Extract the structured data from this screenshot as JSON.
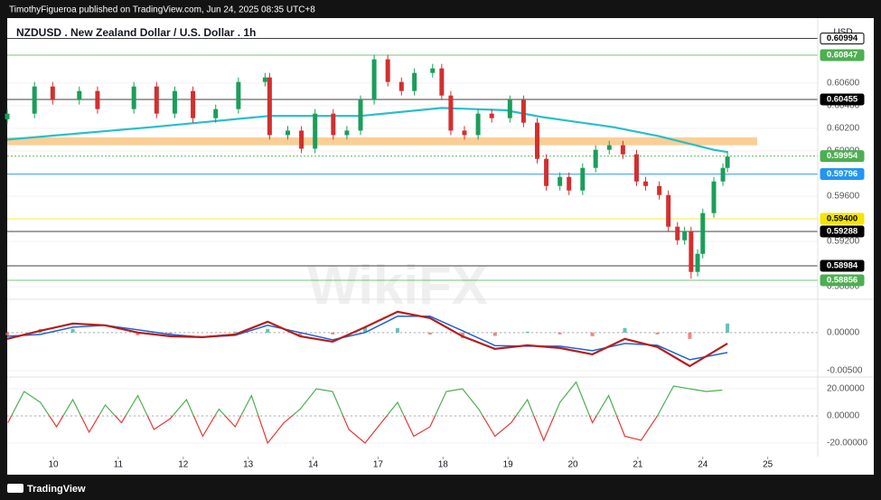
{
  "header": {
    "author_line": "TimothyFigueroa published on TradingView.com, Jun 24, 2025 08:35 UTC+8"
  },
  "footer": {
    "brand": "TradingView"
  },
  "watermark": "WikiFX",
  "chart_data": [
    {
      "type": "candlestick",
      "title": "NZDUSD . New Zealand Dollar / U.S. Dollar . 1h",
      "currency": "USD",
      "x": [
        -0.71,
        -0.29,
        -0.01,
        0.4,
        0.68,
        1.24,
        1.59,
        1.87,
        2.15,
        2.5,
        2.85,
        3.26,
        3.33,
        3.61,
        3.82,
        4.03,
        4.31,
        4.52,
        4.73,
        4.94,
        5.15,
        5.36,
        5.56,
        5.84,
        5.98,
        6.12,
        6.33,
        6.54,
        6.75,
        7.03,
        7.24,
        7.45,
        7.59,
        7.8,
        7.94,
        8.15,
        8.35,
        8.56,
        8.77,
        8.98,
        9.12,
        9.33,
        9.47,
        9.61,
        9.72,
        9.82,
        9.92,
        10.0,
        10.17,
        10.31,
        10.38
      ],
      "open": [
        0.6028,
        0.6033,
        0.6057,
        0.6045,
        0.6053,
        0.6037,
        0.6057,
        0.6033,
        0.6053,
        0.6029,
        0.6037,
        0.6061,
        0.6065,
        0.6014,
        0.6018,
        0.6002,
        0.6033,
        0.6014,
        0.6018,
        0.6045,
        0.6081,
        0.6061,
        0.6053,
        0.6069,
        0.6073,
        0.6049,
        0.6018,
        0.6014,
        0.6033,
        0.6029,
        0.6045,
        0.6025,
        0.5993,
        0.5969,
        0.5977,
        0.5965,
        0.5985,
        0.6001,
        0.6005,
        0.5997,
        0.5973,
        0.5969,
        0.5961,
        0.5933,
        0.5921,
        0.5929,
        0.5893,
        0.5909,
        0.5945,
        0.5973,
        0.5985
      ],
      "high": [
        0.6037,
        0.6061,
        0.6061,
        0.6057,
        0.6057,
        0.6061,
        0.6061,
        0.6057,
        0.6057,
        0.6041,
        0.6065,
        0.6069,
        0.6069,
        0.6022,
        0.6022,
        0.6037,
        0.6037,
        0.6022,
        0.6049,
        0.6085,
        0.6085,
        0.6065,
        0.6073,
        0.6077,
        0.6077,
        0.6053,
        0.6022,
        0.6037,
        0.6037,
        0.6049,
        0.6049,
        0.6029,
        0.5997,
        0.5981,
        0.5981,
        0.5989,
        0.6005,
        0.6009,
        0.6009,
        0.6001,
        0.5977,
        0.5973,
        0.5965,
        0.5937,
        0.5933,
        0.5933,
        0.5913,
        0.5949,
        0.5977,
        0.5989,
        0.6
      ],
      "low": [
        0.6024,
        0.6029,
        0.6041,
        0.6041,
        0.6033,
        0.6033,
        0.6029,
        0.6029,
        0.6025,
        0.6025,
        0.6033,
        0.6057,
        0.601,
        0.601,
        0.5998,
        0.5998,
        0.601,
        0.601,
        0.6014,
        0.6041,
        0.6057,
        0.6049,
        0.6049,
        0.6065,
        0.6045,
        0.6014,
        0.601,
        0.601,
        0.6025,
        0.6025,
        0.6021,
        0.5989,
        0.5965,
        0.5965,
        0.5961,
        0.5961,
        0.5981,
        0.5997,
        0.5993,
        0.5969,
        0.5965,
        0.5957,
        0.5929,
        0.5917,
        0.5917,
        0.5887,
        0.5889,
        0.5905,
        0.5941,
        0.5969,
        0.5981
      ],
      "close": [
        0.6033,
        0.6057,
        0.6045,
        0.6053,
        0.6037,
        0.6057,
        0.6033,
        0.6053,
        0.6029,
        0.6037,
        0.6061,
        0.6065,
        0.6014,
        0.6018,
        0.6002,
        0.6033,
        0.6014,
        0.6018,
        0.6045,
        0.6081,
        0.6061,
        0.6053,
        0.6069,
        0.6073,
        0.6049,
        0.6018,
        0.6014,
        0.6033,
        0.6029,
        0.6045,
        0.6025,
        0.5993,
        0.5969,
        0.5977,
        0.5965,
        0.5985,
        0.6001,
        0.6005,
        0.5997,
        0.5973,
        0.5969,
        0.5961,
        0.5933,
        0.5921,
        0.5929,
        0.5893,
        0.5909,
        0.5945,
        0.5973,
        0.5985,
        0.5995
      ],
      "up_color": "#1b9e5a",
      "down_color": "#d32f2f",
      "moving_average": {
        "x": [
          -0.71,
          1.5,
          3.33,
          4.73,
          5.98,
          6.96,
          7.52,
          8.63,
          9.33,
          10.17,
          10.38
        ],
        "values": [
          0.601,
          0.6021,
          0.6031,
          0.6031,
          0.6038,
          0.6036,
          0.603,
          0.6021,
          0.6013,
          0.6001,
          0.5999
        ],
        "color": "#26bfc9"
      },
      "zone": [
        0.6005,
        0.6012
      ],
      "zone_color": "#f9c784",
      "levels": {
        "values": [
          0.60994,
          0.60847,
          0.60455,
          0.59954,
          0.59796,
          0.594,
          0.59288,
          0.58984,
          0.58856
        ],
        "value_labels": [
          "0.60994",
          "0.60847",
          "0.60455",
          "0.59954",
          "0.59796",
          "0.59400",
          "0.59288",
          "0.58984",
          "0.58856"
        ],
        "colors": [
          "#000000",
          "#4caf50",
          "#000000",
          "#4caf50",
          "#2196f3",
          "#f5e400",
          "#000000",
          "#000000",
          "#4caf50"
        ],
        "text_colors": [
          "#000000",
          "#ffffff",
          "#ffffff",
          "#ffffff",
          "#ffffff",
          "#000000",
          "#ffffff",
          "#ffffff",
          "#ffffff"
        ]
      },
      "ylim": [
        0.58736,
        0.61159
      ],
      "yticks": [
        {
          "value": 0.606,
          "label": "0.60600"
        },
        {
          "value": 0.604,
          "label": "0.60400"
        },
        {
          "value": 0.602,
          "label": "0.60200"
        },
        {
          "value": 0.6,
          "label": "0.60000"
        },
        {
          "value": 0.596,
          "label": "0.59600"
        },
        {
          "value": 0.592,
          "label": "0.59200"
        },
        {
          "value": 0.588,
          "label": "0.58800"
        }
      ],
      "xlim": [
        -0.71,
        11.77
      ],
      "xticks": [
        {
          "value": 0,
          "label": "10"
        },
        {
          "value": 1,
          "label": "11"
        },
        {
          "value": 2,
          "label": "12"
        },
        {
          "value": 3,
          "label": "13"
        },
        {
          "value": 4,
          "label": "14"
        },
        {
          "value": 5,
          "label": "17"
        },
        {
          "value": 6,
          "label": "18"
        },
        {
          "value": 7,
          "label": "19"
        },
        {
          "value": 8,
          "label": "20"
        },
        {
          "value": 9,
          "label": "21"
        },
        {
          "value": 10,
          "label": "24"
        },
        {
          "value": 11,
          "label": "25"
        }
      ]
    },
    {
      "type": "macd",
      "x": [
        -0.71,
        -0.2,
        0.3,
        0.8,
        1.3,
        1.8,
        2.3,
        2.8,
        3.3,
        3.8,
        4.3,
        4.8,
        5.3,
        5.8,
        6.3,
        6.8,
        7.3,
        7.8,
        8.3,
        8.8,
        9.3,
        9.8,
        10.38
      ],
      "macd": {
        "values": [
          -0.00083,
          0.00024,
          0.00119,
          0.00095,
          0,
          -0.00048,
          -0.0006,
          -0.00024,
          0.00143,
          -0.00048,
          -0.00119,
          0.00071,
          0.00274,
          0.0019,
          -0.00048,
          -0.00214,
          -0.00167,
          -0.00202,
          -0.00286,
          -0.00083,
          -0.0019,
          -0.0044,
          -0.00143
        ],
        "color": "#b71c1c"
      },
      "signal": {
        "values": [
          -0.00048,
          -0.00024,
          0.00071,
          0.00095,
          0.00036,
          -0.00024,
          -0.0006,
          -0.00036,
          0.00095,
          0,
          -0.00095,
          0,
          0.00214,
          0.00214,
          0.00024,
          -0.0017,
          -0.00179,
          -0.00179,
          -0.00238,
          -0.00143,
          -0.00167,
          -0.00357,
          -0.00262
        ],
        "color": "#1e63d6"
      },
      "histogram": {
        "values": [
          -0.00035,
          0.00048,
          0.00048,
          0,
          -0.00036,
          -0.00024,
          0,
          0.00012,
          0.00048,
          -0.00048,
          -0.00024,
          0.00071,
          0.0006,
          -0.00024,
          -0.00072,
          -0.00044,
          0.00012,
          -0.00023,
          -0.00048,
          0.0006,
          -0.00023,
          -0.00083,
          0.00119
        ],
        "up_color": "#26a69a",
        "down_color": "#ef5350"
      },
      "ylim": [
        -0.0056,
        0.0039
      ],
      "yticks": [
        {
          "value": 0,
          "label": "0.00000"
        },
        {
          "value": -0.005,
          "label": "-0.00500"
        }
      ],
      "xlim": [
        -0.71,
        11.77
      ]
    },
    {
      "type": "line",
      "x": [
        -0.7,
        -0.45,
        -0.2,
        0.05,
        0.3,
        0.55,
        0.8,
        1.05,
        1.3,
        1.55,
        1.8,
        2.05,
        2.3,
        2.55,
        2.8,
        3.05,
        3.3,
        3.55,
        3.8,
        4.05,
        4.3,
        4.55,
        4.8,
        5.05,
        5.3,
        5.55,
        5.8,
        6.05,
        6.3,
        6.55,
        6.8,
        7.05,
        7.3,
        7.55,
        7.8,
        8.05,
        8.3,
        8.55,
        8.8,
        9.05,
        9.3,
        9.55,
        9.8,
        10.05,
        10.3
      ],
      "values": [
        -5,
        18,
        10,
        -8,
        12,
        -12,
        8,
        -5,
        15,
        -10,
        -2,
        12,
        -15,
        5,
        -8,
        15,
        -20,
        -5,
        5,
        20,
        18,
        -10,
        -20,
        -5,
        10,
        -15,
        -8,
        18,
        20,
        5,
        -15,
        -5,
        12,
        -18,
        10,
        25,
        -5,
        15,
        -15,
        -18,
        0,
        22,
        20,
        18,
        19
      ],
      "up_color": "#4caf50",
      "down_color": "#e53935",
      "ylim": [
        -30,
        26.7
      ],
      "yticks": [
        {
          "value": 20,
          "label": "20.00000"
        },
        {
          "value": 0,
          "label": "0.00000"
        },
        {
          "value": -20,
          "label": "-20.00000"
        }
      ],
      "xlim": [
        -0.71,
        11.77
      ]
    }
  ]
}
